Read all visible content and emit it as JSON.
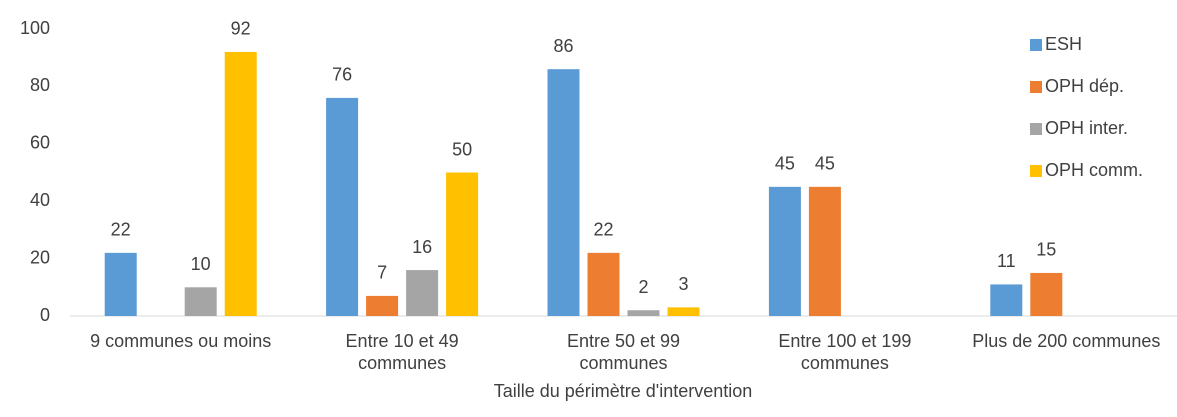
{
  "chart_data": {
    "type": "bar",
    "x_label": "Taille du périmètre d'intervention",
    "categories": [
      "9 communes ou moins",
      "Entre 10 et 49 communes",
      "Entre 50 et 99 communes",
      "Entre 100 et 199 communes",
      "Plus de 200 communes"
    ],
    "series": [
      {
        "name": "ESH",
        "color": "#5b9bd5",
        "values": [
          22,
          76,
          86,
          45,
          11
        ]
      },
      {
        "name": "OPH dép.",
        "color": "#ed7d31",
        "values": [
          null,
          7,
          22,
          45,
          15
        ]
      },
      {
        "name": "OPH inter.",
        "color": "#a5a5a5",
        "values": [
          10,
          16,
          2,
          null,
          null
        ]
      },
      {
        "name": "OPH comm.",
        "color": "#ffc000",
        "values": [
          92,
          50,
          3,
          null,
          null
        ]
      }
    ],
    "ylim": [
      0,
      100
    ],
    "yticks": [
      0,
      20,
      40,
      60,
      80,
      100
    ],
    "grid": false,
    "legend": "right"
  }
}
